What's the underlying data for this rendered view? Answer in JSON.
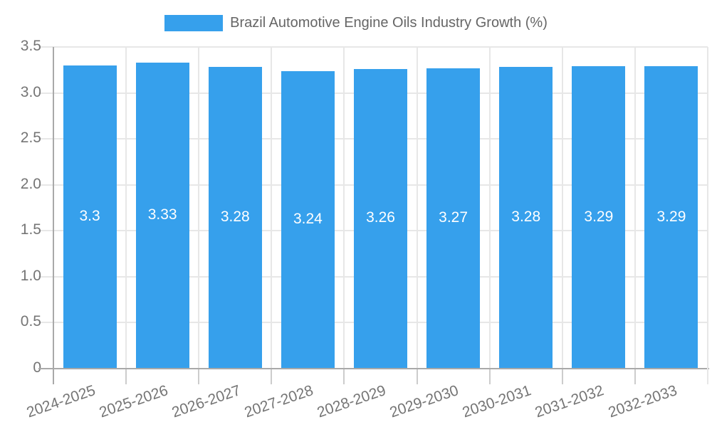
{
  "legend": {
    "label": "Brazil Automotive Engine Oils Industry Growth (%)"
  },
  "colors": {
    "bar": "#36a0ec",
    "grid": "#e7e7e7",
    "axis": "#a9a9a9",
    "x_tick": "#cccccc",
    "tick_label": "#757575",
    "legend_text": "#666666",
    "bar_label": "#ffffff",
    "background": "#ffffff"
  },
  "chart_data": {
    "type": "bar",
    "title": "Brazil Automotive Engine Oils Industry Growth (%)",
    "categories": [
      "2024-2025",
      "2025-2026",
      "2026-2027",
      "2027-2028",
      "2028-2029",
      "2029-2030",
      "2030-2031",
      "2031-2032",
      "2032-2033"
    ],
    "values": [
      3.3,
      3.33,
      3.28,
      3.24,
      3.26,
      3.27,
      3.28,
      3.29,
      3.29
    ],
    "bar_labels": [
      "3.3",
      "3.33",
      "3.28",
      "3.24",
      "3.26",
      "3.27",
      "3.28",
      "3.29",
      "3.29"
    ],
    "xlabel": "",
    "ylabel": "",
    "ylim": [
      0,
      3.5
    ],
    "yticks": [
      0,
      0.5,
      1.0,
      1.5,
      2.0,
      2.5,
      3.0,
      3.5
    ],
    "ytick_labels": [
      "0",
      "0.5",
      "1.0",
      "1.5",
      "2.0",
      "2.5",
      "3.0",
      "3.5"
    ],
    "x_label_rotation_deg": -19,
    "grid": true,
    "legend_position": "top"
  }
}
